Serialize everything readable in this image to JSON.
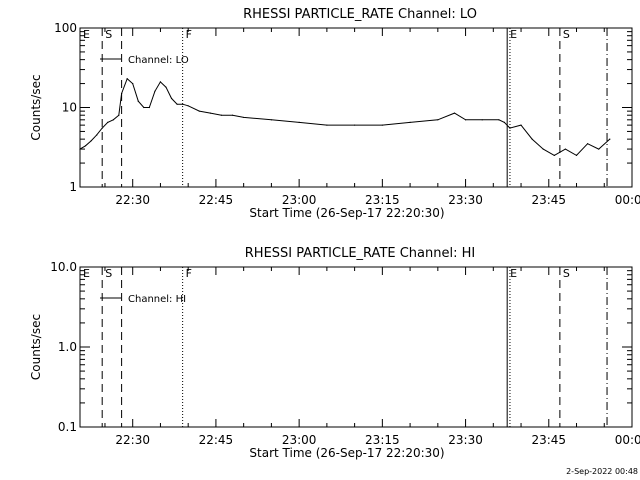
{
  "footer": {
    "timestamp": "2-Sep-2022 00:48"
  },
  "chart_data": [
    {
      "type": "line",
      "title": "RHESSI PARTICLE_RATE Channel: LO",
      "xlabel": "Start Time (26-Sep-17 22:20:30)",
      "ylabel": "Counts/sec",
      "yscale": "log",
      "xlim": [
        "22:20:30",
        "00:00"
      ],
      "ylim": [
        1,
        100
      ],
      "xticks": [
        "22:30",
        "22:45",
        "23:00",
        "23:15",
        "23:30",
        "23:45",
        "00:00"
      ],
      "yticks": [
        "1",
        "10",
        "100"
      ],
      "legend": "top-left",
      "series": [
        {
          "name": "Channel: LO",
          "x": [
            "22:20:30",
            "22:21:30",
            "22:22:30",
            "22:23:30",
            "22:24:30",
            "22:25:30",
            "22:26:30",
            "22:27:30",
            "22:28:00",
            "22:29:00",
            "22:30:00",
            "22:31:00",
            "22:32:00",
            "22:33:00",
            "22:34:00",
            "22:35:00",
            "22:36:00",
            "22:37:00",
            "22:38:00",
            "22:39:00",
            "22:40:00",
            "22:42:00",
            "22:44:00",
            "22:46:00",
            "22:48:00",
            "22:50:00",
            "22:55:00",
            "23:00:00",
            "23:05:00",
            "23:10:00",
            "23:15:00",
            "23:20:00",
            "23:25:00",
            "23:28:00",
            "23:30:00",
            "23:33:00",
            "23:36:00",
            "23:37:00",
            "23:38:00",
            "23:40:00",
            "23:42:00",
            "23:44:00",
            "23:46:00",
            "23:48:00",
            "23:50:00",
            "23:52:00",
            "23:54:00",
            "23:56:00"
          ],
          "values": [
            3,
            3.3,
            3.8,
            4.5,
            5.5,
            6.5,
            7,
            8,
            15,
            23,
            20,
            12,
            10,
            10,
            16,
            21,
            18,
            13,
            11,
            11,
            10.5,
            9,
            8.5,
            8,
            8,
            7.5,
            7,
            6.5,
            6,
            6,
            6,
            6.5,
            7,
            8.5,
            7,
            7,
            7,
            6.5,
            5.5,
            6,
            4,
            3,
            2.5,
            3,
            2.5,
            3.5,
            3,
            4
          ]
        }
      ],
      "markers": [
        {
          "label": "E",
          "time": "22:20:30",
          "style": "dashed"
        },
        {
          "label": "S",
          "time": "22:24:30",
          "style": "dashed"
        },
        {
          "label": "",
          "time": "22:28:00",
          "style": "dashed"
        },
        {
          "label": "F",
          "time": "22:39:00",
          "style": "dotted"
        },
        {
          "label": "E",
          "time": "23:37:30",
          "style": "solid"
        },
        {
          "label": "",
          "time": "23:38:00",
          "style": "dotted"
        },
        {
          "label": "S",
          "time": "23:47:00",
          "style": "dashed"
        },
        {
          "label": "",
          "time": "23:55:30",
          "style": "dashdot"
        }
      ]
    },
    {
      "type": "line",
      "title": "RHESSI PARTICLE_RATE Channel: HI",
      "xlabel": "Start Time (26-Sep-17 22:20:30)",
      "ylabel": "Counts/sec",
      "yscale": "log",
      "xlim": [
        "22:20:30",
        "00:00"
      ],
      "ylim": [
        0.1,
        10
      ],
      "xticks": [
        "22:30",
        "22:45",
        "23:00",
        "23:15",
        "23:30",
        "23:45",
        "00:00"
      ],
      "yticks": [
        "0.1",
        "1.0",
        "10.0"
      ],
      "legend": "top-left",
      "series": [
        {
          "name": "Channel: HI",
          "x": [],
          "values": []
        }
      ],
      "markers": [
        {
          "label": "E",
          "time": "22:20:30",
          "style": "dashed"
        },
        {
          "label": "S",
          "time": "22:24:30",
          "style": "dashed"
        },
        {
          "label": "",
          "time": "22:28:00",
          "style": "dashed"
        },
        {
          "label": "F",
          "time": "22:39:00",
          "style": "dotted"
        },
        {
          "label": "E",
          "time": "23:37:30",
          "style": "solid"
        },
        {
          "label": "",
          "time": "23:38:00",
          "style": "dotted"
        },
        {
          "label": "S",
          "time": "23:47:00",
          "style": "dashed"
        },
        {
          "label": "",
          "time": "23:55:30",
          "style": "dashdot"
        }
      ]
    }
  ]
}
